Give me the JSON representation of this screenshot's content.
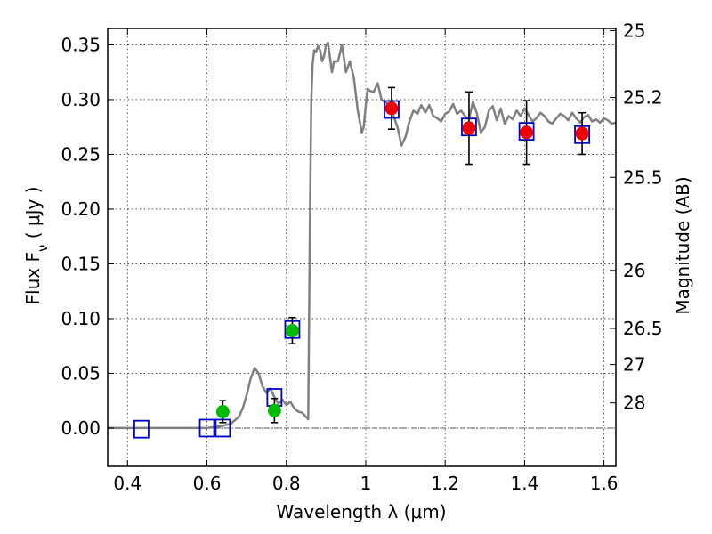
{
  "chart_data": {
    "type": "scatter",
    "title": "",
    "xlabel": "Wavelength  λ (μm)",
    "ylabel": "Flux  F",
    "ylabel_sub": "ν",
    "ylabel_unit": "  ( μJy )",
    "ylabel_right": "Magnitude (AB)",
    "xlim": [
      0.35,
      1.63
    ],
    "ylim": [
      -0.035,
      0.365
    ],
    "grid": true,
    "x_ticks": [
      0.4,
      0.6,
      0.8,
      1.0,
      1.2,
      1.4,
      1.6
    ],
    "x_tick_labels": [
      "0.4",
      "0.6",
      "0.8",
      "1",
      "1.2",
      "1.4",
      "1.6"
    ],
    "y_ticks": [
      0.0,
      0.05,
      0.1,
      0.15,
      0.2,
      0.25,
      0.3,
      0.35
    ],
    "y_tick_labels": [
      "0.00",
      "0.05",
      "0.10",
      "0.15",
      "0.20",
      "0.25",
      "0.30",
      "0.35"
    ],
    "right_ticks": [
      {
        "mag": "25",
        "flux": 0.363
      },
      {
        "mag": "25.2",
        "flux": 0.302
      },
      {
        "mag": "25.5",
        "flux": 0.229
      },
      {
        "mag": "26",
        "flux": 0.144
      },
      {
        "mag": "26.5",
        "flux": 0.091
      },
      {
        "mag": "27",
        "flux": 0.058
      },
      {
        "mag": "28",
        "flux": 0.023
      }
    ],
    "colors": {
      "model": "#808080",
      "squares": "#0000cc",
      "green": "#00bb00",
      "red": "#ee0000",
      "errorbar": "#000000",
      "zero_line": "#555555"
    },
    "series": [
      {
        "kind": "line",
        "x": [
          0.35,
          0.4,
          0.45,
          0.5,
          0.55,
          0.6,
          0.62,
          0.64,
          0.66,
          0.68,
          0.69,
          0.7,
          0.71,
          0.72,
          0.73,
          0.74,
          0.75,
          0.76,
          0.77,
          0.78,
          0.79,
          0.8,
          0.81,
          0.82,
          0.83,
          0.84,
          0.85,
          0.855,
          0.86,
          0.863,
          0.866,
          0.87,
          0.875,
          0.88,
          0.885,
          0.89,
          0.895,
          0.9,
          0.905,
          0.91,
          0.915,
          0.92,
          0.93,
          0.94,
          0.95,
          0.96,
          0.97,
          0.98,
          0.99,
          0.995,
          1.0,
          1.005,
          1.01,
          1.02,
          1.03,
          1.04,
          1.05,
          1.06,
          1.07,
          1.08,
          1.09,
          1.1,
          1.11,
          1.12,
          1.13,
          1.14,
          1.15,
          1.16,
          1.17,
          1.18,
          1.19,
          1.2,
          1.21,
          1.22,
          1.23,
          1.24,
          1.25,
          1.26,
          1.27,
          1.28,
          1.29,
          1.3,
          1.31,
          1.32,
          1.33,
          1.34,
          1.35,
          1.36,
          1.37,
          1.38,
          1.39,
          1.4,
          1.41,
          1.42,
          1.43,
          1.44,
          1.45,
          1.46,
          1.47,
          1.48,
          1.49,
          1.5,
          1.51,
          1.52,
          1.53,
          1.54,
          1.55,
          1.56,
          1.57,
          1.58,
          1.59,
          1.6,
          1.61,
          1.62,
          1.63
        ],
        "y": [
          0.0,
          0.0,
          0.0,
          0.0,
          0.0,
          0.0,
          0.001,
          0.002,
          0.004,
          0.01,
          0.018,
          0.03,
          0.045,
          0.055,
          0.05,
          0.038,
          0.032,
          0.036,
          0.028,
          0.022,
          0.026,
          0.021,
          0.024,
          0.018,
          0.015,
          0.014,
          0.01,
          0.008,
          0.21,
          0.3,
          0.332,
          0.345,
          0.344,
          0.349,
          0.345,
          0.335,
          0.34,
          0.35,
          0.352,
          0.338,
          0.325,
          0.335,
          0.335,
          0.35,
          0.325,
          0.335,
          0.32,
          0.29,
          0.27,
          0.275,
          0.295,
          0.31,
          0.308,
          0.307,
          0.315,
          0.3,
          0.297,
          0.295,
          0.285,
          0.275,
          0.258,
          0.266,
          0.28,
          0.29,
          0.287,
          0.295,
          0.288,
          0.295,
          0.285,
          0.283,
          0.28,
          0.287,
          0.289,
          0.296,
          0.287,
          0.29,
          0.285,
          0.282,
          0.298,
          0.287,
          0.27,
          0.275,
          0.29,
          0.294,
          0.281,
          0.292,
          0.278,
          0.285,
          0.282,
          0.29,
          0.285,
          0.292,
          0.286,
          0.28,
          0.283,
          0.288,
          0.285,
          0.28,
          0.278,
          0.283,
          0.287,
          0.285,
          0.281,
          0.288,
          0.283,
          0.279,
          0.284,
          0.286,
          0.28,
          0.282,
          0.279,
          0.283,
          0.281,
          0.278,
          0.279
        ]
      },
      {
        "kind": "squares",
        "x": [
          0.435,
          0.6,
          0.64,
          0.77,
          0.815,
          1.065,
          1.26,
          1.405,
          1.545
        ],
        "y": [
          -0.001,
          0.0,
          0.0,
          0.028,
          0.09,
          0.291,
          0.275,
          0.271,
          0.268
        ]
      },
      {
        "kind": "green_points",
        "x": [
          0.64,
          0.77,
          0.815
        ],
        "y": [
          0.015,
          0.016,
          0.089
        ],
        "err": [
          0.01,
          0.011,
          0.012
        ]
      },
      {
        "kind": "red_points",
        "x": [
          1.065,
          1.26,
          1.405,
          1.545
        ],
        "y": [
          0.292,
          0.274,
          0.27,
          0.269
        ],
        "err": [
          0.019,
          0.033,
          0.029,
          0.019
        ]
      }
    ]
  }
}
